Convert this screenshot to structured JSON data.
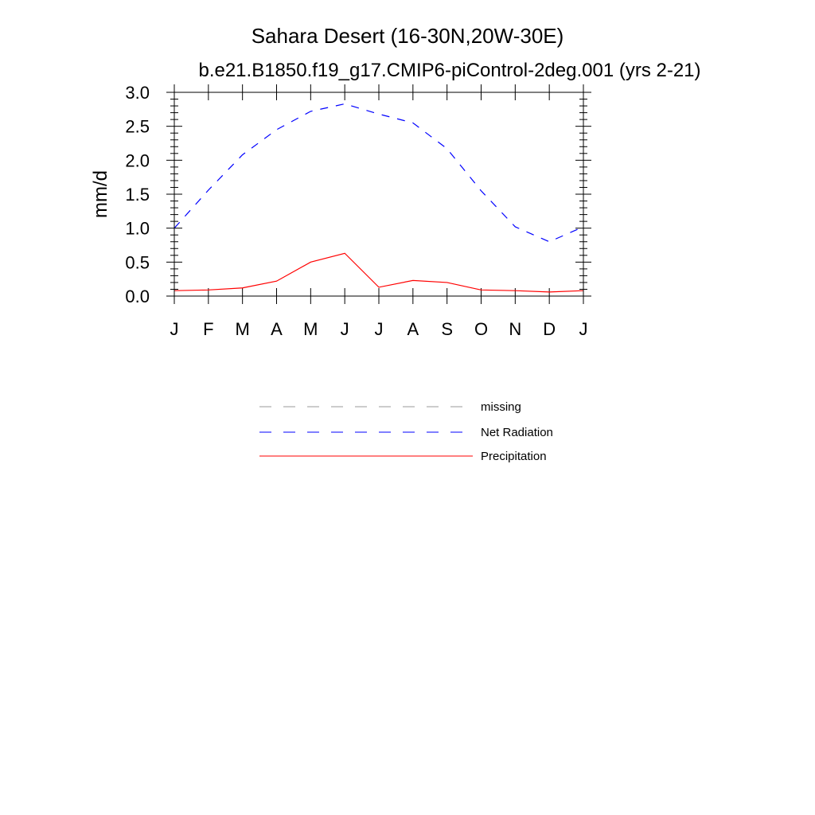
{
  "chart_data": {
    "type": "line",
    "title": "Sahara Desert (16-30N,20W-30E)",
    "subtitle": "b.e21.B1850.f19_g17.CMIP6-piControl-2deg.001 (yrs 2-21)",
    "xlabel": "",
    "ylabel": "mm/d",
    "categories": [
      "J",
      "F",
      "M",
      "A",
      "M",
      "J",
      "J",
      "A",
      "S",
      "O",
      "N",
      "D",
      "J"
    ],
    "ylim": [
      0,
      3
    ],
    "yticks": [
      "0.0",
      "0.5",
      "1.0",
      "1.5",
      "2.0",
      "2.5",
      "3.0"
    ],
    "ytick_values": [
      0,
      0.5,
      1,
      1.5,
      2,
      2.5,
      3
    ],
    "grid": false,
    "legend_position": "bottom",
    "series": [
      {
        "name": "Net Radiation",
        "color": "#0000ff",
        "dash": "dashed",
        "values": [
          1.0,
          1.56,
          2.08,
          2.45,
          2.72,
          2.83,
          2.68,
          2.55,
          2.17,
          1.55,
          1.02,
          0.8,
          1.02
        ]
      },
      {
        "name": "Precipitation",
        "color": "#ff0000",
        "dash": "solid",
        "values": [
          0.08,
          0.09,
          0.12,
          0.22,
          0.5,
          0.63,
          0.13,
          0.23,
          0.2,
          0.09,
          0.08,
          0.06,
          0.08
        ]
      }
    ],
    "legend": [
      {
        "name": "missing",
        "color": "#999999",
        "dash": "dashed"
      },
      {
        "name": "Net Radiation",
        "color": "#0000ff",
        "dash": "dashed"
      },
      {
        "name": "Precipitation",
        "color": "#ff0000",
        "dash": "solid"
      }
    ]
  }
}
